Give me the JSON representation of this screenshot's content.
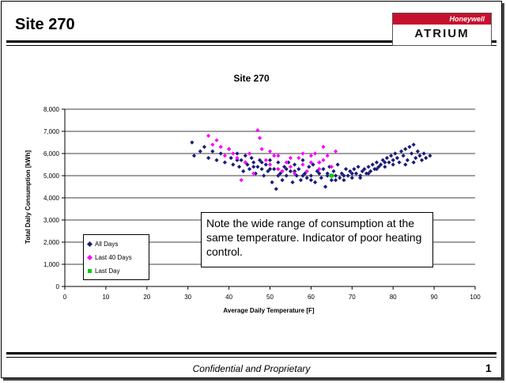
{
  "slide": {
    "title": "Site 270",
    "logo_brand": "Honeywell",
    "logo_product": "ATRIUM",
    "footer": "Confidential and Proprietary",
    "page_number": "1"
  },
  "note": "Note the wide range of consumption at the same temperature.  Indicator of poor heating control.",
  "colors": {
    "all_days": "#1a1a7a",
    "last_40_days": "#ff00ff",
    "last_day": "#00cc00",
    "logo_red": "#c8102e"
  },
  "chart_data": {
    "type": "scatter",
    "title": "Site 270",
    "xlabel": "Average Daily Temperature [F]",
    "ylabel": "Total Daily Consumption [kWh]",
    "xlim": [
      0,
      100
    ],
    "ylim": [
      0,
      8000
    ],
    "x_ticks": [
      "0",
      "10",
      "20",
      "30",
      "40",
      "50",
      "60",
      "70",
      "80",
      "90",
      "100"
    ],
    "y_ticks": [
      "0",
      "1,000",
      "2,000",
      "3,000",
      "4,000",
      "5,000",
      "6,000",
      "7,000",
      "8,000"
    ],
    "grid": "horizontal",
    "legend_position": "bottom-left",
    "series": [
      {
        "name": "All Days",
        "marker": "diamond",
        "points": [
          [
            31,
            6500
          ],
          [
            31.5,
            5900
          ],
          [
            33,
            6100
          ],
          [
            34,
            6300
          ],
          [
            35,
            5800
          ],
          [
            36,
            6100
          ],
          [
            37,
            5700
          ],
          [
            38,
            6000
          ],
          [
            39,
            5600
          ],
          [
            40,
            6200
          ],
          [
            40.5,
            5800
          ],
          [
            41,
            5500
          ],
          [
            42,
            6000
          ],
          [
            42.5,
            5400
          ],
          [
            43,
            5700
          ],
          [
            43.5,
            5200
          ],
          [
            44,
            5900
          ],
          [
            44.5,
            5500
          ],
          [
            45,
            5300
          ],
          [
            45.5,
            5800
          ],
          [
            46,
            5600
          ],
          [
            46.5,
            5100
          ],
          [
            47,
            5400
          ],
          [
            47.5,
            5700
          ],
          [
            48,
            5300
          ],
          [
            48.5,
            5000
          ],
          [
            49,
            5500
          ],
          [
            49.5,
            5200
          ],
          [
            50,
            5700
          ],
          [
            50.5,
            4700
          ],
          [
            51,
            5300
          ],
          [
            51.5,
            4400
          ],
          [
            52,
            5600
          ],
          [
            52.5,
            5100
          ],
          [
            53,
            4800
          ],
          [
            53.5,
            5400
          ],
          [
            54,
            5000
          ],
          [
            54.5,
            5600
          ],
          [
            55,
            5200
          ],
          [
            55.5,
            4700
          ],
          [
            56,
            5500
          ],
          [
            56.5,
            5000
          ],
          [
            57,
            5300
          ],
          [
            57.5,
            4800
          ],
          [
            58,
            5700
          ],
          [
            58.5,
            5100
          ],
          [
            59,
            4900
          ],
          [
            59.5,
            5400
          ],
          [
            60,
            5000
          ],
          [
            60.5,
            5500
          ],
          [
            61,
            4700
          ],
          [
            61.5,
            5200
          ],
          [
            62,
            5600
          ],
          [
            62.5,
            4900
          ],
          [
            63,
            5300
          ],
          [
            63.5,
            4500
          ],
          [
            64,
            5100
          ],
          [
            64.5,
            5400
          ],
          [
            65,
            4800
          ],
          [
            65.5,
            5200
          ],
          [
            66,
            5000
          ],
          [
            66.5,
            5500
          ],
          [
            67,
            4900
          ],
          [
            67.5,
            5100
          ],
          [
            68,
            4800
          ],
          [
            68.5,
            5300
          ],
          [
            69,
            5000
          ],
          [
            69.5,
            5200
          ],
          [
            70,
            4900
          ],
          [
            70.5,
            5300
          ],
          [
            71,
            5100
          ],
          [
            71.5,
            5400
          ],
          [
            72,
            5000
          ],
          [
            72.5,
            5200
          ],
          [
            73,
            5300
          ],
          [
            73.5,
            5100
          ],
          [
            74,
            5400
          ],
          [
            74.5,
            5200
          ],
          [
            75,
            5500
          ],
          [
            75.5,
            5300
          ],
          [
            76,
            5600
          ],
          [
            76.5,
            5400
          ],
          [
            77,
            5500
          ],
          [
            77.5,
            5700
          ],
          [
            78,
            5400
          ],
          [
            78.5,
            5800
          ],
          [
            79,
            5600
          ],
          [
            79.5,
            5900
          ],
          [
            80,
            5700
          ],
          [
            80.5,
            6000
          ],
          [
            81,
            5800
          ],
          [
            81.5,
            5600
          ],
          [
            82,
            6100
          ],
          [
            82.5,
            5900
          ],
          [
            83,
            6200
          ],
          [
            83.5,
            5700
          ],
          [
            84,
            6300
          ],
          [
            84.5,
            6000
          ],
          [
            85,
            6400
          ],
          [
            85.5,
            5800
          ],
          [
            86,
            6100
          ],
          [
            86.5,
            5900
          ],
          [
            87,
            5700
          ],
          [
            87.5,
            6000
          ],
          [
            88,
            5800
          ],
          [
            89,
            5900
          ],
          [
            83,
            5500
          ],
          [
            85,
            5600
          ],
          [
            80,
            5500
          ],
          [
            78,
            5600
          ],
          [
            76,
            5300
          ],
          [
            74,
            5100
          ],
          [
            72,
            4900
          ],
          [
            70,
            5100
          ],
          [
            68,
            5000
          ],
          [
            66,
            4800
          ],
          [
            64,
            5000
          ],
          [
            62,
            5100
          ],
          [
            60,
            4800
          ],
          [
            58,
            5000
          ],
          [
            56,
            5200
          ],
          [
            54,
            5300
          ],
          [
            52,
            5000
          ],
          [
            50,
            5300
          ],
          [
            48,
            5600
          ],
          [
            46,
            5400
          ],
          [
            44,
            5600
          ],
          [
            42,
            5700
          ]
        ]
      },
      {
        "name": "Last 40 Days",
        "marker": "diamond",
        "points": [
          [
            35,
            6800
          ],
          [
            37,
            6600
          ],
          [
            38,
            6300
          ],
          [
            40,
            6200
          ],
          [
            41,
            6000
          ],
          [
            42,
            5800
          ],
          [
            43,
            4800
          ],
          [
            44,
            5600
          ],
          [
            46,
            5100
          ],
          [
            47,
            7050
          ],
          [
            47.5,
            6700
          ],
          [
            48,
            6200
          ],
          [
            49,
            5700
          ],
          [
            50,
            5500
          ],
          [
            51,
            5900
          ],
          [
            52,
            5300
          ],
          [
            53,
            5200
          ],
          [
            54,
            5600
          ],
          [
            55,
            5400
          ],
          [
            56,
            5100
          ],
          [
            57,
            5800
          ],
          [
            58,
            5500
          ],
          [
            59,
            5200
          ],
          [
            60,
            5600
          ],
          [
            61,
            6000
          ],
          [
            62,
            5300
          ],
          [
            63,
            6300
          ],
          [
            64,
            5900
          ],
          [
            65,
            5400
          ],
          [
            66,
            6100
          ],
          [
            45,
            6000
          ],
          [
            39,
            5900
          ],
          [
            36,
            6400
          ],
          [
            50,
            6100
          ],
          [
            52,
            5900
          ],
          [
            55,
            5800
          ],
          [
            60,
            5900
          ],
          [
            62,
            5600
          ],
          [
            63,
            5700
          ],
          [
            58,
            6000
          ]
        ]
      },
      {
        "name": "Last Day",
        "marker": "square",
        "points": [
          [
            65,
            5000
          ]
        ]
      }
    ]
  }
}
